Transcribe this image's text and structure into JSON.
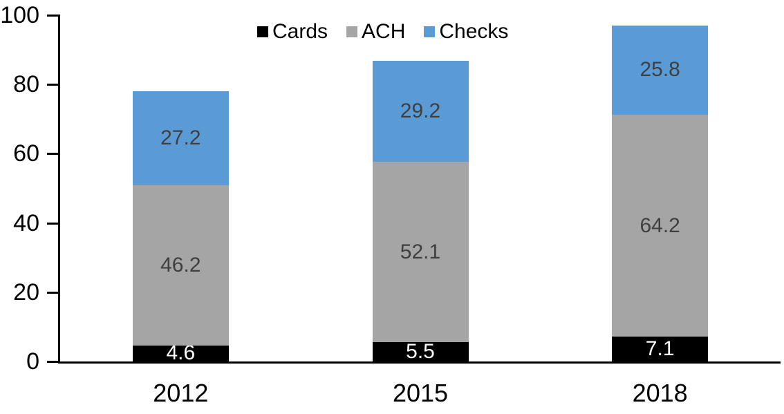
{
  "chart_data": {
    "type": "bar",
    "stacked": true,
    "title": "",
    "categories": [
      "2012",
      "2015",
      "2018"
    ],
    "series": [
      {
        "name": "Cards",
        "color": "#000000",
        "label_color": "#ffffff",
        "values": [
          4.6,
          5.5,
          7.1
        ]
      },
      {
        "name": "ACH",
        "color": "#a5a5a5",
        "label_color": "#3f3f3f",
        "values": [
          46.2,
          52.1,
          64.2
        ]
      },
      {
        "name": "Checks",
        "color": "#5b9bd5",
        "label_color": "#3f3f3f",
        "values": [
          27.2,
          29.2,
          25.8
        ]
      }
    ],
    "bar_totals": [
      78.0,
      86.8,
      97.1
    ],
    "y_axis": {
      "min": 0,
      "max": 100,
      "ticks": [
        0,
        20,
        40,
        60,
        80,
        100
      ]
    },
    "x_axis": {
      "labels": [
        "2012",
        "2015",
        "2018"
      ]
    },
    "legend": {
      "position": "top-center",
      "entries": [
        "Cards",
        "ACH",
        "Checks"
      ]
    },
    "grid": false,
    "value_label_decimals": 1,
    "axis_color": "#000000",
    "background": "#ffffff"
  }
}
